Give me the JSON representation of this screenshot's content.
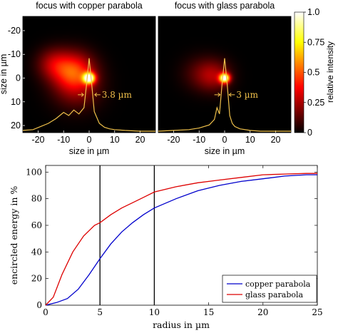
{
  "chart_data": [
    {
      "type": "heatmap",
      "title": "focus with copper parabola",
      "xlabel": "size in µm",
      "ylabel": "size in µm",
      "xlim": [
        -26,
        26
      ],
      "ylim": [
        -26,
        23
      ],
      "x_ticks": [
        -20,
        -10,
        0,
        10,
        20
      ],
      "y_ticks": [
        -20,
        -10,
        0,
        10,
        20
      ],
      "x_tick_labels": [
        "-20",
        "-10",
        "0",
        "10",
        "20"
      ],
      "y_tick_labels": [
        "-20",
        "-10",
        "0",
        "10",
        "20"
      ],
      "spots": [
        {
          "x": 0,
          "y": 0,
          "sigma": 1.6,
          "amp": 1.0
        },
        {
          "x": -6,
          "y": -3,
          "sigma": 5.5,
          "amp": 0.4
        },
        {
          "x": -14,
          "y": -6,
          "sigma": 4.5,
          "amp": 0.22
        },
        {
          "x": -5,
          "y": 4,
          "sigma": 6.5,
          "amp": 0.18
        }
      ],
      "profile": {
        "x": [
          -26,
          -22,
          -19,
          -16,
          -13,
          -10,
          -8,
          -6,
          -4,
          -2,
          -1,
          0,
          1,
          2,
          4,
          6,
          8,
          10,
          14,
          20,
          26
        ],
        "y": [
          0.01,
          0.02,
          0.06,
          0.1,
          0.16,
          0.24,
          0.2,
          0.27,
          0.22,
          0.3,
          0.6,
          0.93,
          0.6,
          0.25,
          0.1,
          0.05,
          0.03,
          0.02,
          0.01,
          0.0,
          0.0
        ]
      },
      "annotation": {
        "label": "3.8 µm",
        "fwhm": 3.8
      }
    },
    {
      "type": "heatmap",
      "title": "focus with glass parabola",
      "xlabel": "size in µm",
      "xlim": [
        -26,
        26
      ],
      "ylim": [
        -26,
        23
      ],
      "x_ticks": [
        -20,
        -10,
        0,
        10,
        20
      ],
      "x_tick_labels": [
        "-20",
        "-10",
        "0",
        "10",
        "20"
      ],
      "spots": [
        {
          "x": 0,
          "y": 0,
          "sigma": 1.4,
          "amp": 1.0
        },
        {
          "x": -4,
          "y": -1,
          "sigma": 4.5,
          "amp": 0.22
        },
        {
          "x": -10,
          "y": -2,
          "sigma": 5.0,
          "amp": 0.1
        }
      ],
      "profile": {
        "x": [
          -26,
          -20,
          -14,
          -10,
          -6,
          -4,
          -3,
          -2,
          -1,
          0,
          1,
          2,
          3,
          4,
          6,
          10,
          14,
          20,
          26
        ],
        "y": [
          0.0,
          0.01,
          0.02,
          0.04,
          0.08,
          0.15,
          0.3,
          0.22,
          0.6,
          0.93,
          0.6,
          0.2,
          0.1,
          0.06,
          0.03,
          0.01,
          0.0,
          0.0,
          0.0
        ]
      },
      "annotation": {
        "label": "3 µm",
        "fwhm": 3.0
      }
    },
    {
      "type": "colorbar",
      "label": "relative intensity",
      "range": [
        0,
        1
      ],
      "ticks": [
        0,
        0.25,
        0.5,
        0.75,
        1
      ],
      "tick_labels": [
        "0",
        "0.25",
        "0.5",
        "0.75",
        "1.0"
      ]
    },
    {
      "type": "line",
      "xlabel": "radius in µm",
      "ylabel": "encircled energy in %",
      "xlim": [
        0,
        25
      ],
      "ylim": [
        0,
        105
      ],
      "x_ticks": [
        0,
        5,
        10,
        15,
        20,
        25
      ],
      "y_ticks": [
        0,
        20,
        40,
        60,
        80,
        100
      ],
      "x_tick_labels": [
        "0",
        "5",
        "10",
        "15",
        "20",
        "25"
      ],
      "y_tick_labels": [
        "0",
        "20",
        "40",
        "60",
        "80",
        "100"
      ],
      "vlines": [
        5,
        10
      ],
      "legend_position": "bottom-right",
      "series": [
        {
          "name": "copper parabola",
          "color": "#0000cc",
          "x": [
            0,
            1,
            2,
            3,
            4,
            5,
            6,
            7,
            8,
            9,
            10,
            12,
            14,
            16,
            18,
            20,
            22,
            24,
            25
          ],
          "y": [
            0,
            2,
            5,
            12,
            23,
            35,
            46,
            55,
            62,
            68,
            73,
            80,
            86,
            90,
            93,
            95,
            97,
            98,
            98
          ]
        },
        {
          "name": "glass parabola",
          "color": "#dd0000",
          "x": [
            0,
            0.7,
            1.5,
            2.5,
            3.5,
            4.5,
            5,
            6,
            7,
            8,
            9,
            10,
            12,
            14,
            16,
            18,
            20,
            22,
            24,
            25
          ],
          "y": [
            0,
            6,
            23,
            40,
            52,
            60,
            62,
            68,
            73,
            77,
            81,
            85,
            89,
            92,
            94,
            96,
            98,
            98.5,
            99,
            99
          ]
        }
      ]
    }
  ]
}
